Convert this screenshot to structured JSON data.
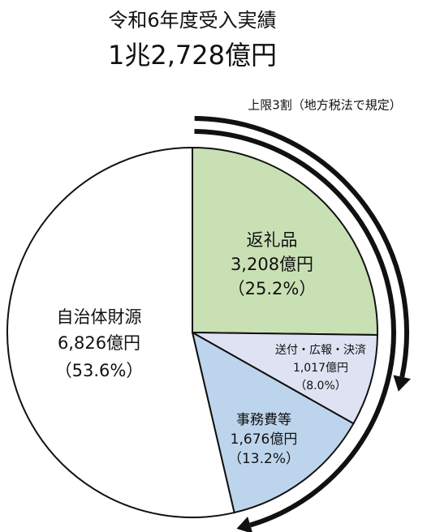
{
  "chart_data": {
    "type": "pie",
    "title": "令和6年度受入実績",
    "subtitle": "1兆2,728億円",
    "annotation": "上限3割（地方税法で規定）",
    "categories": [
      "返礼品",
      "送付・広報・決済",
      "事務費等",
      "自治体財源"
    ],
    "values": [
      3208,
      1017,
      1676,
      6826
    ],
    "value_labels": [
      "3,208億円",
      "1,017億円",
      "1,676億円",
      "6,826億円"
    ],
    "shares": [
      25.2,
      8.0,
      13.2,
      53.6
    ],
    "share_labels": [
      "（25.2%）",
      "（8.0%）",
      "（13.2%）",
      "（53.6%）"
    ],
    "colors": [
      "#c9e0b4",
      "#dfe2f3",
      "#bdd5ec",
      "#ffffff"
    ]
  }
}
